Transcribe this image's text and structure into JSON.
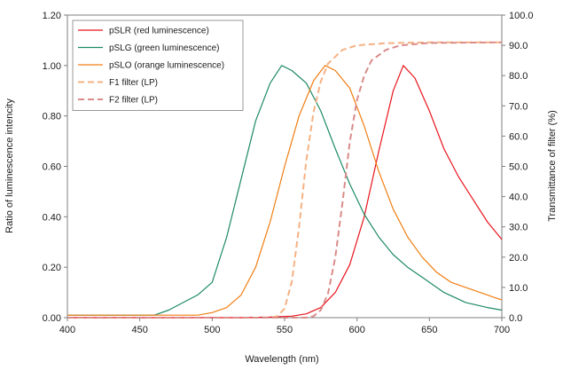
{
  "chart_data": {
    "type": "line",
    "xlabel": "Wavelength (nm)",
    "ylabel": "Ratio of luminescence intencity",
    "y2label": "Transmittance of filter (%)",
    "xlim": [
      400,
      700
    ],
    "ylim": [
      0,
      1.2
    ],
    "y2lim": [
      0,
      100
    ],
    "x_ticks": [
      "400",
      "450",
      "500",
      "550",
      "600",
      "650",
      "700"
    ],
    "y_ticks": [
      "0.00",
      "0.20",
      "0.40",
      "0.60",
      "0.80",
      "1.00",
      "1.20"
    ],
    "y2_ticks": [
      "0.0",
      "10.0",
      "20.0",
      "30.0",
      "40.0",
      "50.0",
      "60.0",
      "70.0",
      "80.0",
      "90.0",
      "100.0"
    ],
    "grid": false,
    "legend_position": "top-left",
    "series": [
      {
        "name": "pSLR (red luminescence)",
        "color": "#e8141c",
        "dash": "solid",
        "axis": "left",
        "x": [
          400,
          520,
          540,
          555,
          565,
          575,
          585,
          595,
          605,
          615,
          625,
          632,
          640,
          650,
          660,
          670,
          680,
          690,
          700
        ],
        "y": [
          0.0,
          0.0,
          0.002,
          0.006,
          0.015,
          0.04,
          0.1,
          0.21,
          0.4,
          0.66,
          0.9,
          1.0,
          0.95,
          0.82,
          0.67,
          0.56,
          0.47,
          0.38,
          0.31
        ]
      },
      {
        "name": "pSLG (green luminescence)",
        "color": "#1d8a62",
        "dash": "solid",
        "axis": "left",
        "x": [
          400,
          460,
          470,
          480,
          490,
          500,
          510,
          520,
          530,
          540,
          548,
          555,
          565,
          575,
          585,
          595,
          605,
          615,
          625,
          635,
          645,
          660,
          675,
          690,
          700
        ],
        "y": [
          0.01,
          0.01,
          0.03,
          0.06,
          0.09,
          0.14,
          0.32,
          0.55,
          0.78,
          0.93,
          1.0,
          0.98,
          0.93,
          0.82,
          0.67,
          0.53,
          0.41,
          0.32,
          0.25,
          0.2,
          0.16,
          0.1,
          0.06,
          0.04,
          0.03
        ]
      },
      {
        "name": "pSLO (orange luminescence)",
        "color": "#f07d11",
        "dash": "solid",
        "axis": "left",
        "x": [
          400,
          490,
          500,
          510,
          520,
          530,
          540,
          550,
          560,
          570,
          578,
          585,
          595,
          605,
          615,
          625,
          635,
          645,
          655,
          665,
          675,
          685,
          695,
          700
        ],
        "y": [
          0.01,
          0.01,
          0.02,
          0.04,
          0.09,
          0.2,
          0.38,
          0.6,
          0.8,
          0.94,
          1.0,
          0.98,
          0.91,
          0.76,
          0.58,
          0.43,
          0.32,
          0.24,
          0.18,
          0.14,
          0.12,
          0.1,
          0.08,
          0.07
        ]
      },
      {
        "name": "F1 filter (LP)",
        "color": "#f4b183",
        "dash": "dashed",
        "axis": "right",
        "x": [
          400,
          540,
          545,
          550,
          555,
          560,
          565,
          570,
          575,
          580,
          590,
          600,
          620,
          650,
          700
        ],
        "y": [
          0.0,
          0.0,
          0.5,
          3.0,
          12.0,
          30.0,
          52.0,
          68.0,
          78.0,
          84.0,
          88.5,
          90.0,
          90.7,
          91.0,
          91.0
        ]
      },
      {
        "name": "F2 filter (LP)",
        "color": "#d98c8a",
        "dash": "dashed",
        "axis": "right",
        "x": [
          400,
          565,
          570,
          575,
          580,
          585,
          590,
          595,
          600,
          605,
          610,
          620,
          630,
          650,
          700
        ],
        "y": [
          0.0,
          0.0,
          0.5,
          2.5,
          8.0,
          20.0,
          38.0,
          58.0,
          72.0,
          80.0,
          85.0,
          88.5,
          90.0,
          90.8,
          91.0
        ]
      }
    ]
  }
}
